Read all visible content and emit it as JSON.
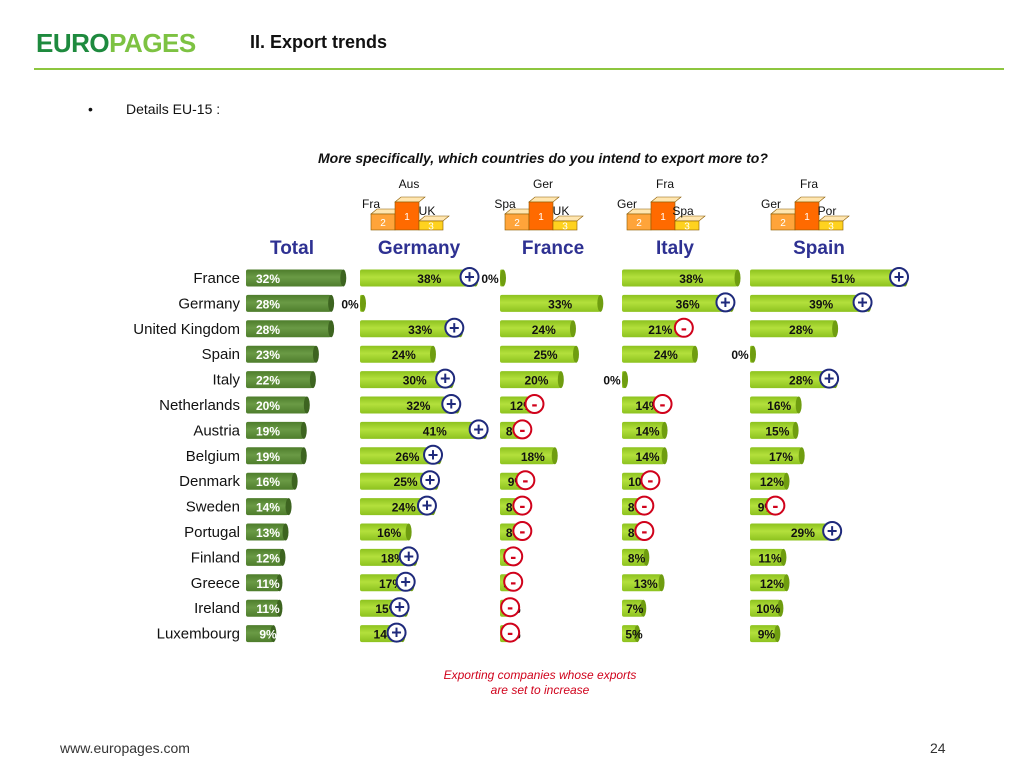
{
  "header": {
    "logo_part1": "EURO",
    "logo_part2": "PAGES",
    "title": "II. Export trends"
  },
  "bullet": {
    "marker": "•",
    "text": "Details EU-15 :"
  },
  "question": "More specifically, which countries do you intend to export more to?",
  "footnote": {
    "line1": "Exporting  companies whose exports",
    "line2": "are set to increase"
  },
  "footer": {
    "url": "www.europages.com",
    "page": "24"
  },
  "colors": {
    "total_bar": "#4e7d2c",
    "other_bar": "#8dc21f",
    "plus_marker": "#1f2a7c",
    "minus_marker": "#d0021b",
    "column_heading": "#2e3192",
    "podium_first": "#ff6a00",
    "podium_second": "#ffa43a",
    "podium_third": "#ffd21f"
  },
  "chart_data": {
    "type": "bar",
    "orientation": "horizontal",
    "categories": [
      "France",
      "Germany",
      "United Kingdom",
      "Spain",
      "Italy",
      "Netherlands",
      "Austria",
      "Belgium",
      "Denmark",
      "Sweden",
      "Portugal",
      "Finland",
      "Greece",
      "Ireland",
      "Luxembourg"
    ],
    "series": [
      {
        "name": "Total",
        "values": [
          32,
          28,
          28,
          23,
          22,
          20,
          19,
          19,
          16,
          14,
          13,
          12,
          11,
          11,
          9
        ],
        "markers": [
          "",
          "",
          "",
          "",
          "",
          "",
          "",
          "",
          "",
          "",
          "",
          "",
          "",
          "",
          ""
        ],
        "podium": null
      },
      {
        "name": "Germany",
        "values": [
          38,
          0,
          33,
          24,
          30,
          32,
          41,
          26,
          25,
          24,
          16,
          18,
          17,
          15,
          14
        ],
        "markers": [
          "+",
          "",
          "+",
          "",
          "+",
          "+",
          "+",
          "+",
          "+",
          "+",
          "",
          "+",
          "+",
          "+",
          "+"
        ],
        "podium": {
          "first": "Aus",
          "second": "Fra",
          "third": "UK"
        }
      },
      {
        "name": "France",
        "values": [
          0,
          33,
          24,
          25,
          20,
          12,
          8,
          18,
          9,
          8,
          8,
          5,
          5,
          4,
          4
        ],
        "markers": [
          "",
          "",
          "",
          "",
          "",
          "-",
          "-",
          "",
          "-",
          "-",
          "-",
          "-",
          "-",
          "-",
          "-"
        ],
        "podium": {
          "first": "Ger",
          "second": "Spa",
          "third": "UK"
        }
      },
      {
        "name": "Italy",
        "values": [
          38,
          36,
          21,
          24,
          0,
          14,
          14,
          14,
          10,
          8,
          8,
          8,
          13,
          7,
          5
        ],
        "markers": [
          "",
          "+",
          "-",
          "",
          "",
          "-",
          "",
          "",
          "-",
          "-",
          "-",
          "",
          "",
          "",
          ""
        ],
        "podium": {
          "first": "Fra",
          "second": "Ger",
          "third": "Spa"
        }
      },
      {
        "name": "Spain",
        "values": [
          51,
          39,
          28,
          0,
          28,
          16,
          15,
          17,
          12,
          9,
          29,
          11,
          12,
          10,
          9
        ],
        "markers": [
          "+",
          "+",
          "",
          "",
          "+",
          "",
          "",
          "",
          "",
          "-",
          "+",
          "",
          "",
          "",
          ""
        ],
        "podium": {
          "first": "Fra",
          "second": "Ger",
          "third": "Por"
        }
      }
    ],
    "value_suffix": "%",
    "podium_ranks": [
      "1",
      "2",
      "3"
    ]
  }
}
